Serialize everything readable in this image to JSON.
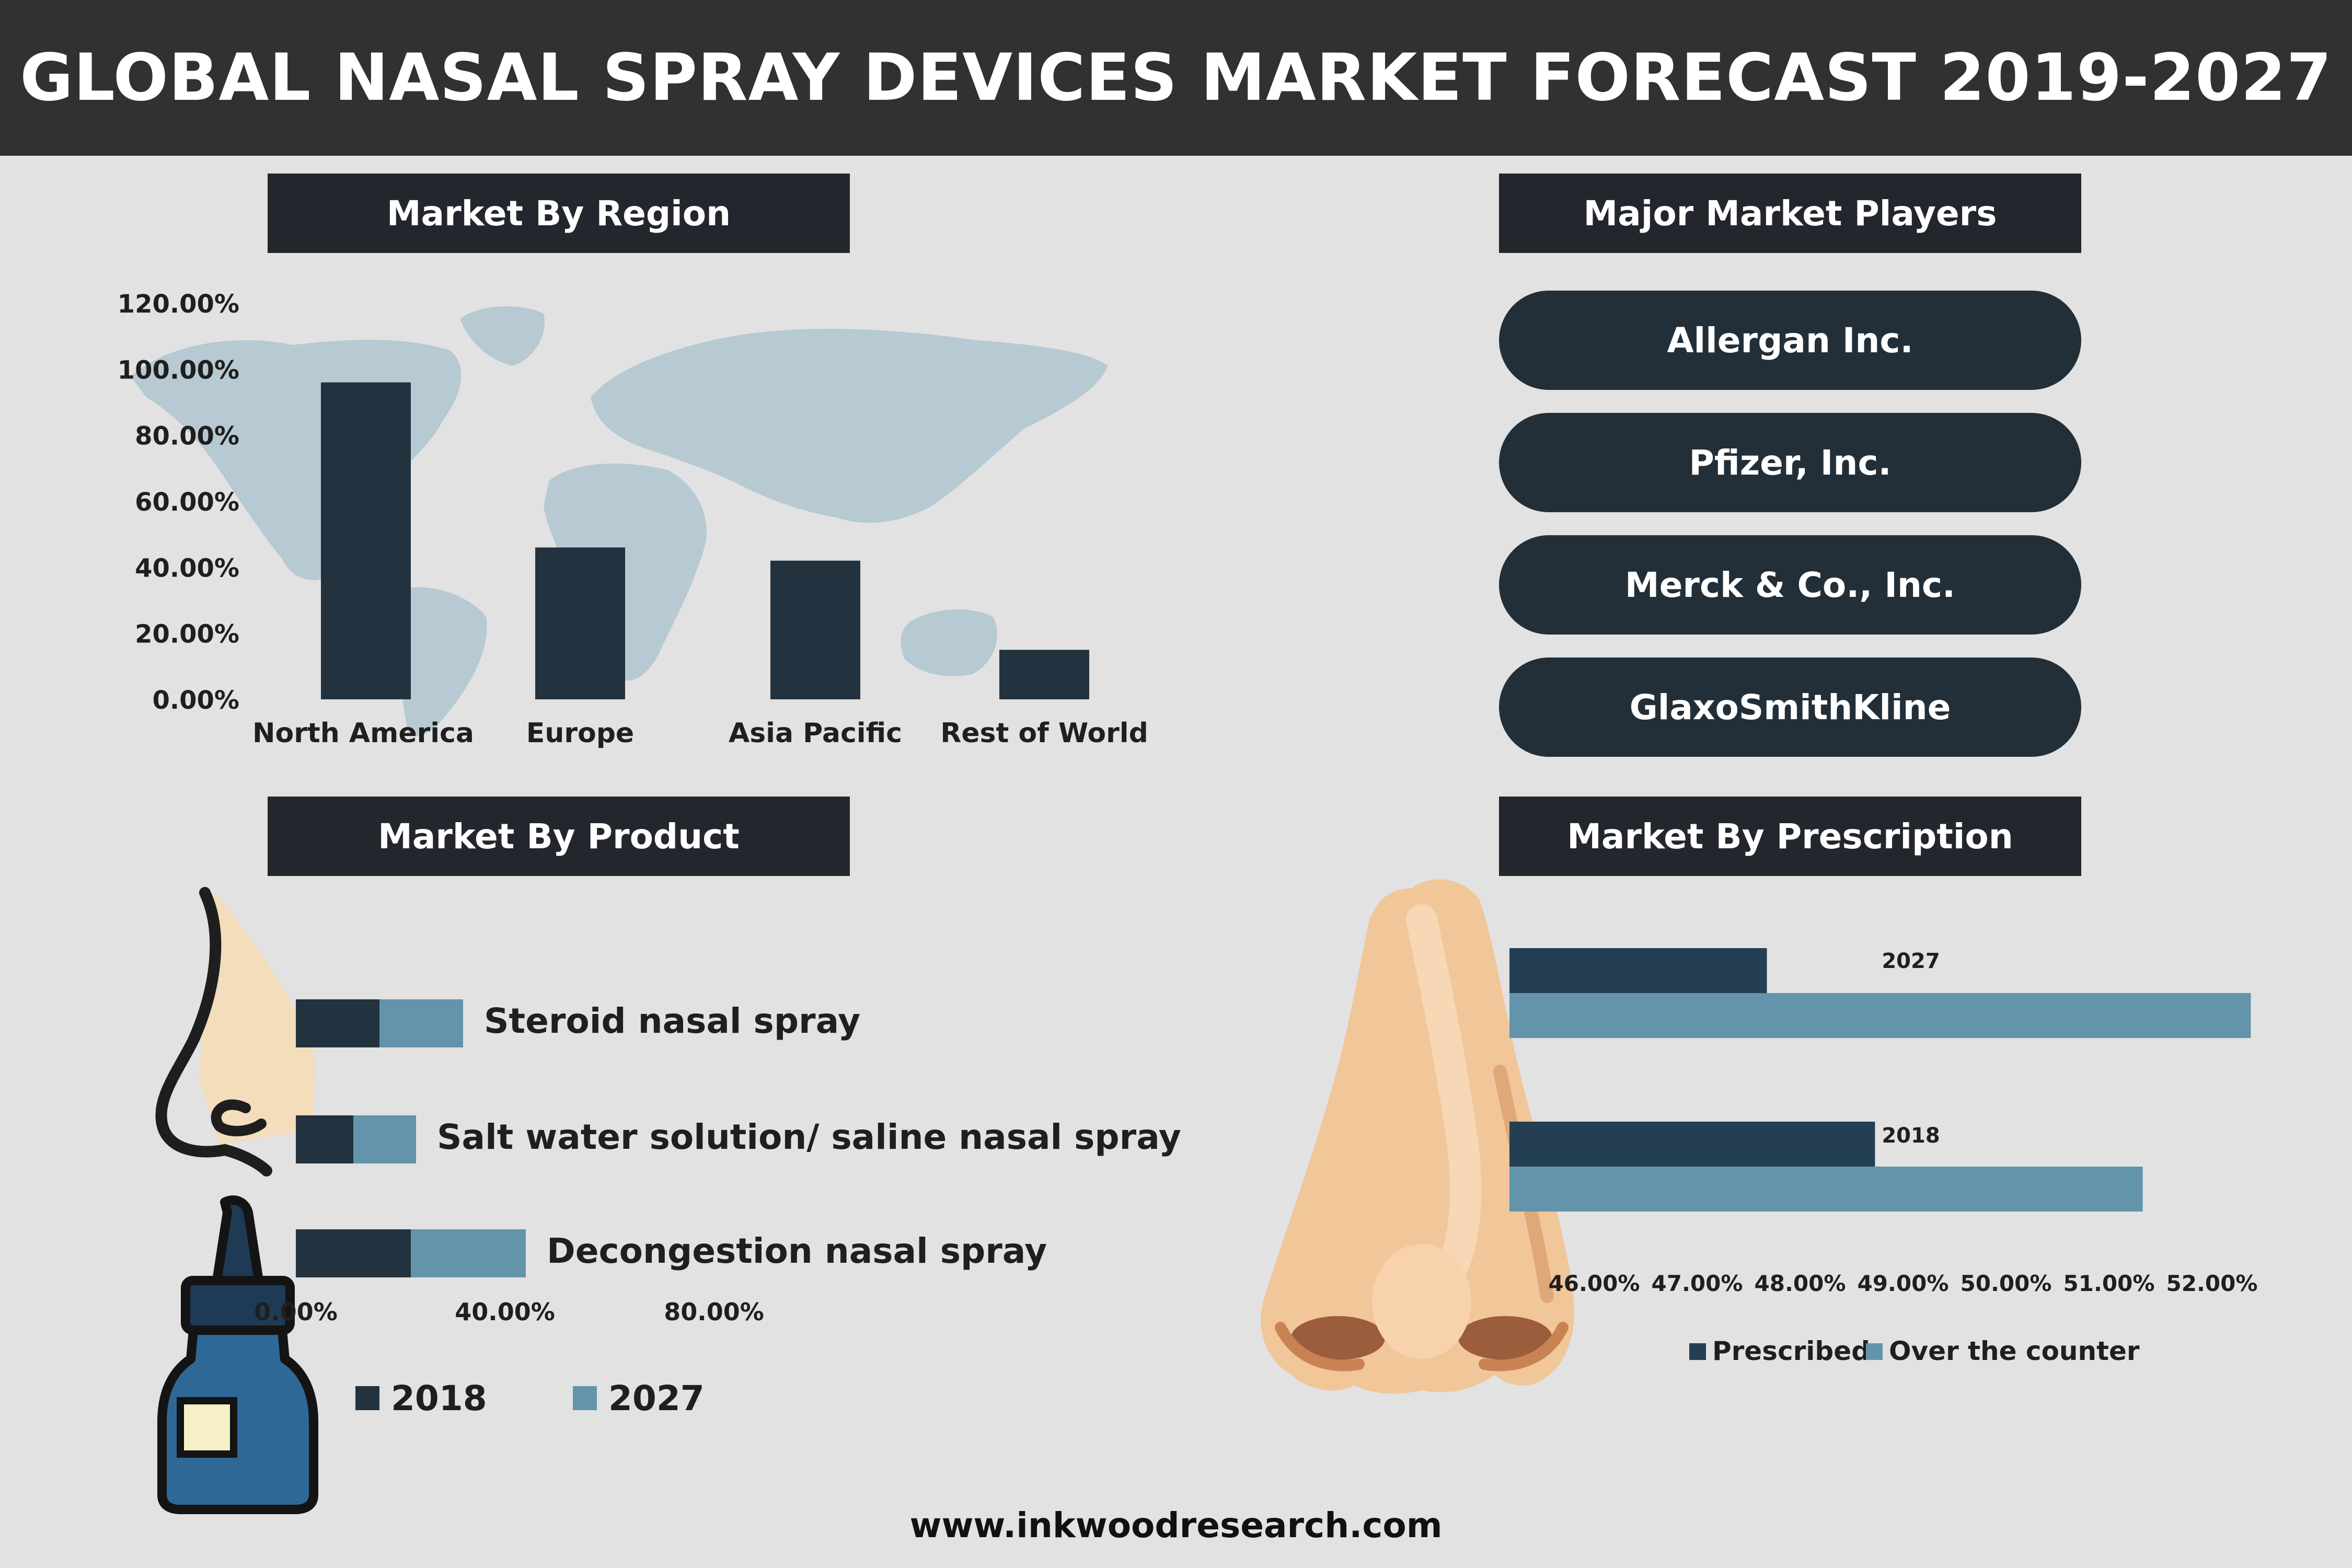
{
  "header": {
    "title": "GLOBAL NASAL SPRAY DEVICES MARKET FORECAST 2019-2027"
  },
  "sections": {
    "region": "Market By Region",
    "players": "Major Market Players",
    "product": "Market By Product",
    "prescription": "Market By Prescription"
  },
  "players": [
    "Allergan Inc.",
    "Pfizer, Inc.",
    "Merck & Co., Inc.",
    "GlaxoSmithKline"
  ],
  "footer": {
    "url": "www.inkwoodresearch.com"
  },
  "colors": {
    "dark_bar": "#23323f",
    "light_bar": "#6394ab",
    "prescribed": "#243f54",
    "otc": "#6394ab",
    "map": "#b7c9d2"
  },
  "chart_data": [
    {
      "type": "bar",
      "categories": [
        "North America",
        "Europe",
        "Asia Pacific",
        "Rest of World"
      ],
      "values": [
        96,
        46,
        42,
        15
      ],
      "ylim": [
        0,
        120
      ],
      "yticks": [
        "0.00%",
        "20.00%",
        "40.00%",
        "60.00%",
        "80.00%",
        "100.00%",
        "120.00%"
      ]
    },
    {
      "type": "bar",
      "orientation": "horizontal",
      "stacked": true,
      "categories": [
        "Steroid nasal spray",
        "Salt water solution/ saline nasal spray",
        "Decongestion nasal spray"
      ],
      "series": [
        {
          "name": "2018",
          "values": [
            16,
            11,
            22
          ]
        },
        {
          "name": "2027",
          "values": [
            16,
            12,
            22
          ]
        }
      ],
      "xlim": [
        0,
        80
      ],
      "xticks": [
        "0.00%",
        "40.00%",
        "80.00%"
      ],
      "legend": "bottom"
    },
    {
      "type": "bar",
      "orientation": "horizontal",
      "categories": [
        "2027",
        "2018"
      ],
      "series": [
        {
          "name": "Prescribed",
          "values": [
            47.5,
            48.55
          ]
        },
        {
          "name": "Over the counter",
          "values": [
            52.2,
            51.15
          ]
        }
      ],
      "xlim": [
        45,
        52
      ],
      "xticks": [
        "46.00%",
        "47.00%",
        "48.00%",
        "49.00%",
        "50.00%",
        "51.00%",
        "52.00%"
      ],
      "legend": "bottom"
    }
  ]
}
